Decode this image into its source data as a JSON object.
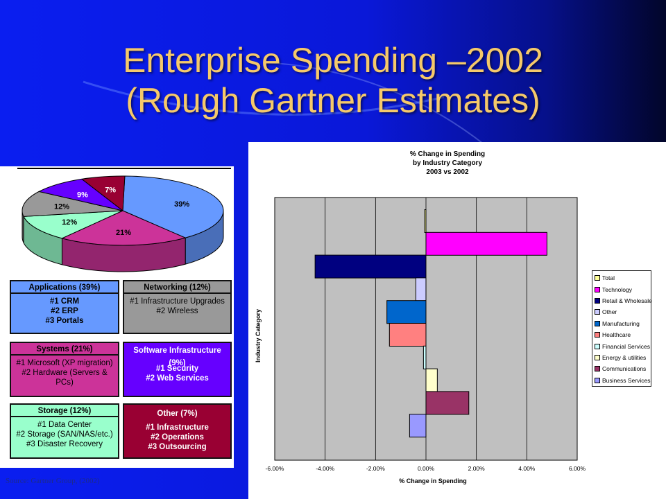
{
  "slide": {
    "title_line1": "Enterprise Spending –2002",
    "title_line2": "(Rough Gartner Estimates)",
    "source": "Source: Gartner Group, (2002)"
  },
  "colors": {
    "title": "#f5c96a",
    "applications": "#6699ff",
    "networking": "#999999",
    "systems": "#cc3399",
    "software_infrastructure": "#6600ff",
    "storage": "#99ffcc",
    "other": "#990033",
    "plot_area": "#c0c0c0"
  },
  "boxes": {
    "applications": {
      "header": "Applications (39%)",
      "lines": [
        "#1 CRM",
        "#2 ERP",
        "#3 Portals"
      ]
    },
    "networking": {
      "header": "Networking (12%)",
      "lines": [
        "#1 Infrastructure Upgrades",
        "#2 Wireless"
      ]
    },
    "systems": {
      "header": "Systems (21%)",
      "lines": [
        "#1 Microsoft (XP migration)",
        "#2 Hardware (Servers &",
        "PCs)"
      ]
    },
    "software": {
      "header": "Software Infrastructure (9%)",
      "lines": [
        "#1 Security",
        "#2 Web Services"
      ]
    },
    "storage": {
      "header": "Storage (12%)",
      "lines": [
        "#1 Data Center",
        "#2 Storage (SAN/NAS/etc.)",
        "#3 Disaster Recovery"
      ]
    },
    "other": {
      "header": "Other (7%)",
      "lines": [
        "#1 Infrastructure",
        "#2 Operations",
        "#3 Outsourcing"
      ]
    }
  },
  "chart_data": [
    {
      "type": "pie",
      "labels": [
        "Applications",
        "Systems",
        "Storage",
        "Networking",
        "Software Infrastructure",
        "Other"
      ],
      "values": [
        39,
        21,
        12,
        12,
        9,
        7
      ],
      "slice_labels": [
        "39%",
        "21%",
        "12%",
        "12%",
        "9%",
        "7%"
      ],
      "colors": [
        "#6699ff",
        "#cc3399",
        "#99ffcc",
        "#999999",
        "#6600ff",
        "#990033"
      ]
    },
    {
      "type": "bar",
      "orientation": "horizontal",
      "title_lines": [
        "% Change in Spending",
        "by Industry Category",
        "2003 vs 2002"
      ],
      "xlabel": "% Change in Spending",
      "ylabel": "Industry Category",
      "xlim": [
        -6,
        6
      ],
      "xticks": [
        "-6.00%",
        "-4.00%",
        "-2.00%",
        "0.00%",
        "2.00%",
        "4.00%",
        "6.00%"
      ],
      "grid": true,
      "legend_position": "right",
      "categories": [
        "Total",
        "Technology",
        "Retail & Wholesale",
        "Other",
        "Manufacturing",
        "Healthcare",
        "Financial Services",
        "Energy & utilities",
        "Communications",
        "Business Services"
      ],
      "values": [
        -0.05,
        4.8,
        -4.4,
        -0.4,
        -1.55,
        -1.45,
        -0.1,
        0.45,
        1.7,
        -0.65
      ],
      "colors": [
        "#ffff99",
        "#ff00ff",
        "#000080",
        "#ccccff",
        "#0066cc",
        "#ff8080",
        "#ccffff",
        "#ffffcc",
        "#993366",
        "#9999ff"
      ]
    }
  ]
}
